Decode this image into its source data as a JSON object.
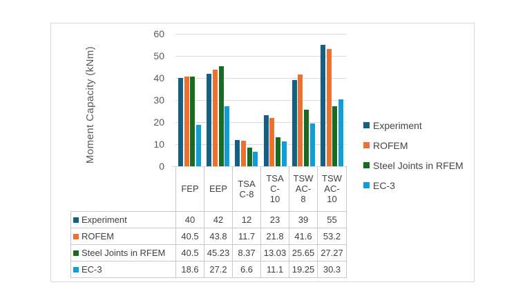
{
  "chart_data": {
    "type": "bar",
    "title": "",
    "ylabel": "Moment Capacity (kNm)",
    "xlabel": "",
    "ylim": [
      0,
      60
    ],
    "y_ticks": [
      0,
      10,
      20,
      30,
      40,
      50,
      60
    ],
    "grid": true,
    "legend_position": "right",
    "data_table_shown": true,
    "categories": [
      "FEP",
      "EEP",
      "TSA C-8",
      "TSA C-10",
      "TSW AC-8",
      "TSW AC-10"
    ],
    "category_header_lines": [
      [
        "FEP"
      ],
      [
        "EEP"
      ],
      [
        "TSA",
        "C-8"
      ],
      [
        "TSA",
        "C-",
        "10"
      ],
      [
        "TSW",
        "AC-",
        "8"
      ],
      [
        "TSW",
        "AC-",
        "10"
      ]
    ],
    "series": [
      {
        "name": "Experiment",
        "color": "#156082",
        "values": [
          40,
          42,
          12,
          23,
          39,
          55
        ]
      },
      {
        "name": "ROFEM",
        "color": "#E97132",
        "values": [
          40.5,
          43.8,
          11.7,
          21.8,
          41.6,
          53.2
        ]
      },
      {
        "name": "Steel Joints in RFEM",
        "color": "#196B24",
        "values": [
          40.5,
          45.23,
          8.37,
          13.03,
          25.65,
          27.27
        ]
      },
      {
        "name": "EC-3",
        "color": "#0F9ED5",
        "values": [
          18.6,
          27.2,
          6.6,
          11.1,
          19.25,
          30.3
        ]
      }
    ],
    "styles": {
      "gridline_color": "#d9d9d9",
      "axis_text_color": "#595959",
      "table_text_color": "#404040",
      "table_border_color": "#c8c8c8",
      "frame_border_color": "#d9d9d9"
    }
  }
}
